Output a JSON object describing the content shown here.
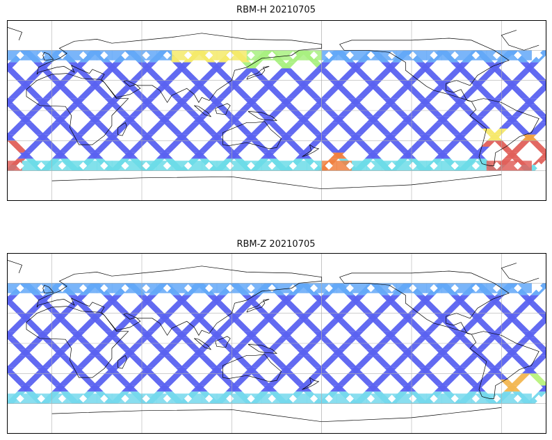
{
  "chart_data": [
    {
      "type": "heatmap",
      "title": "RBM-H 20210705",
      "colormap": "jet",
      "swaths": {
        "base_color": "#5a62f0",
        "regions": [
          {
            "lon": [
              -70,
              -20
            ],
            "lat": [
              -55,
              -30
            ],
            "color": "#e0605a"
          },
          {
            "lon": [
              -50,
              -40
            ],
            "lat": [
              -40,
              -25
            ],
            "color": "#f0a040"
          },
          {
            "lon": [
              -75,
              -55
            ],
            "lat": [
              -35,
              -20
            ],
            "color": "#f6e86a"
          },
          {
            "lon": [
              -180,
              -165
            ],
            "lat": [
              -60,
              -40
            ],
            "color": "#f08040"
          },
          {
            "lon": [
              -180,
              180
            ],
            "lat": [
              -60,
              -50
            ],
            "color": "#6cdce8"
          },
          {
            "lon": [
              80,
              130
            ],
            "lat": [
              50,
              60
            ],
            "color": "#f4ea6a"
          },
          {
            "lon": [
              130,
              180
            ],
            "lat": [
              45,
              60
            ],
            "color": "#a8f080"
          },
          {
            "lon": [
              -180,
              180
            ],
            "lat": [
              50,
              60
            ],
            "color": "#63a8f8"
          }
        ]
      }
    },
    {
      "type": "heatmap",
      "title": "RBM-Z 20210705",
      "colormap": "jet",
      "swaths": {
        "base_color": "#5a62f0",
        "regions": [
          {
            "lon": [
              -60,
              -40
            ],
            "lat": [
              -50,
              -30
            ],
            "color": "#f2b650"
          },
          {
            "lon": [
              -45,
              -25
            ],
            "lat": [
              -45,
              -30
            ],
            "color": "#b8f27c"
          },
          {
            "lon": [
              -180,
              180
            ],
            "lat": [
              -60,
              -50
            ],
            "color": "#74d8ec"
          },
          {
            "lon": [
              -180,
              180
            ],
            "lat": [
              50,
              60
            ],
            "color": "#63a8f8"
          }
        ]
      }
    }
  ]
}
